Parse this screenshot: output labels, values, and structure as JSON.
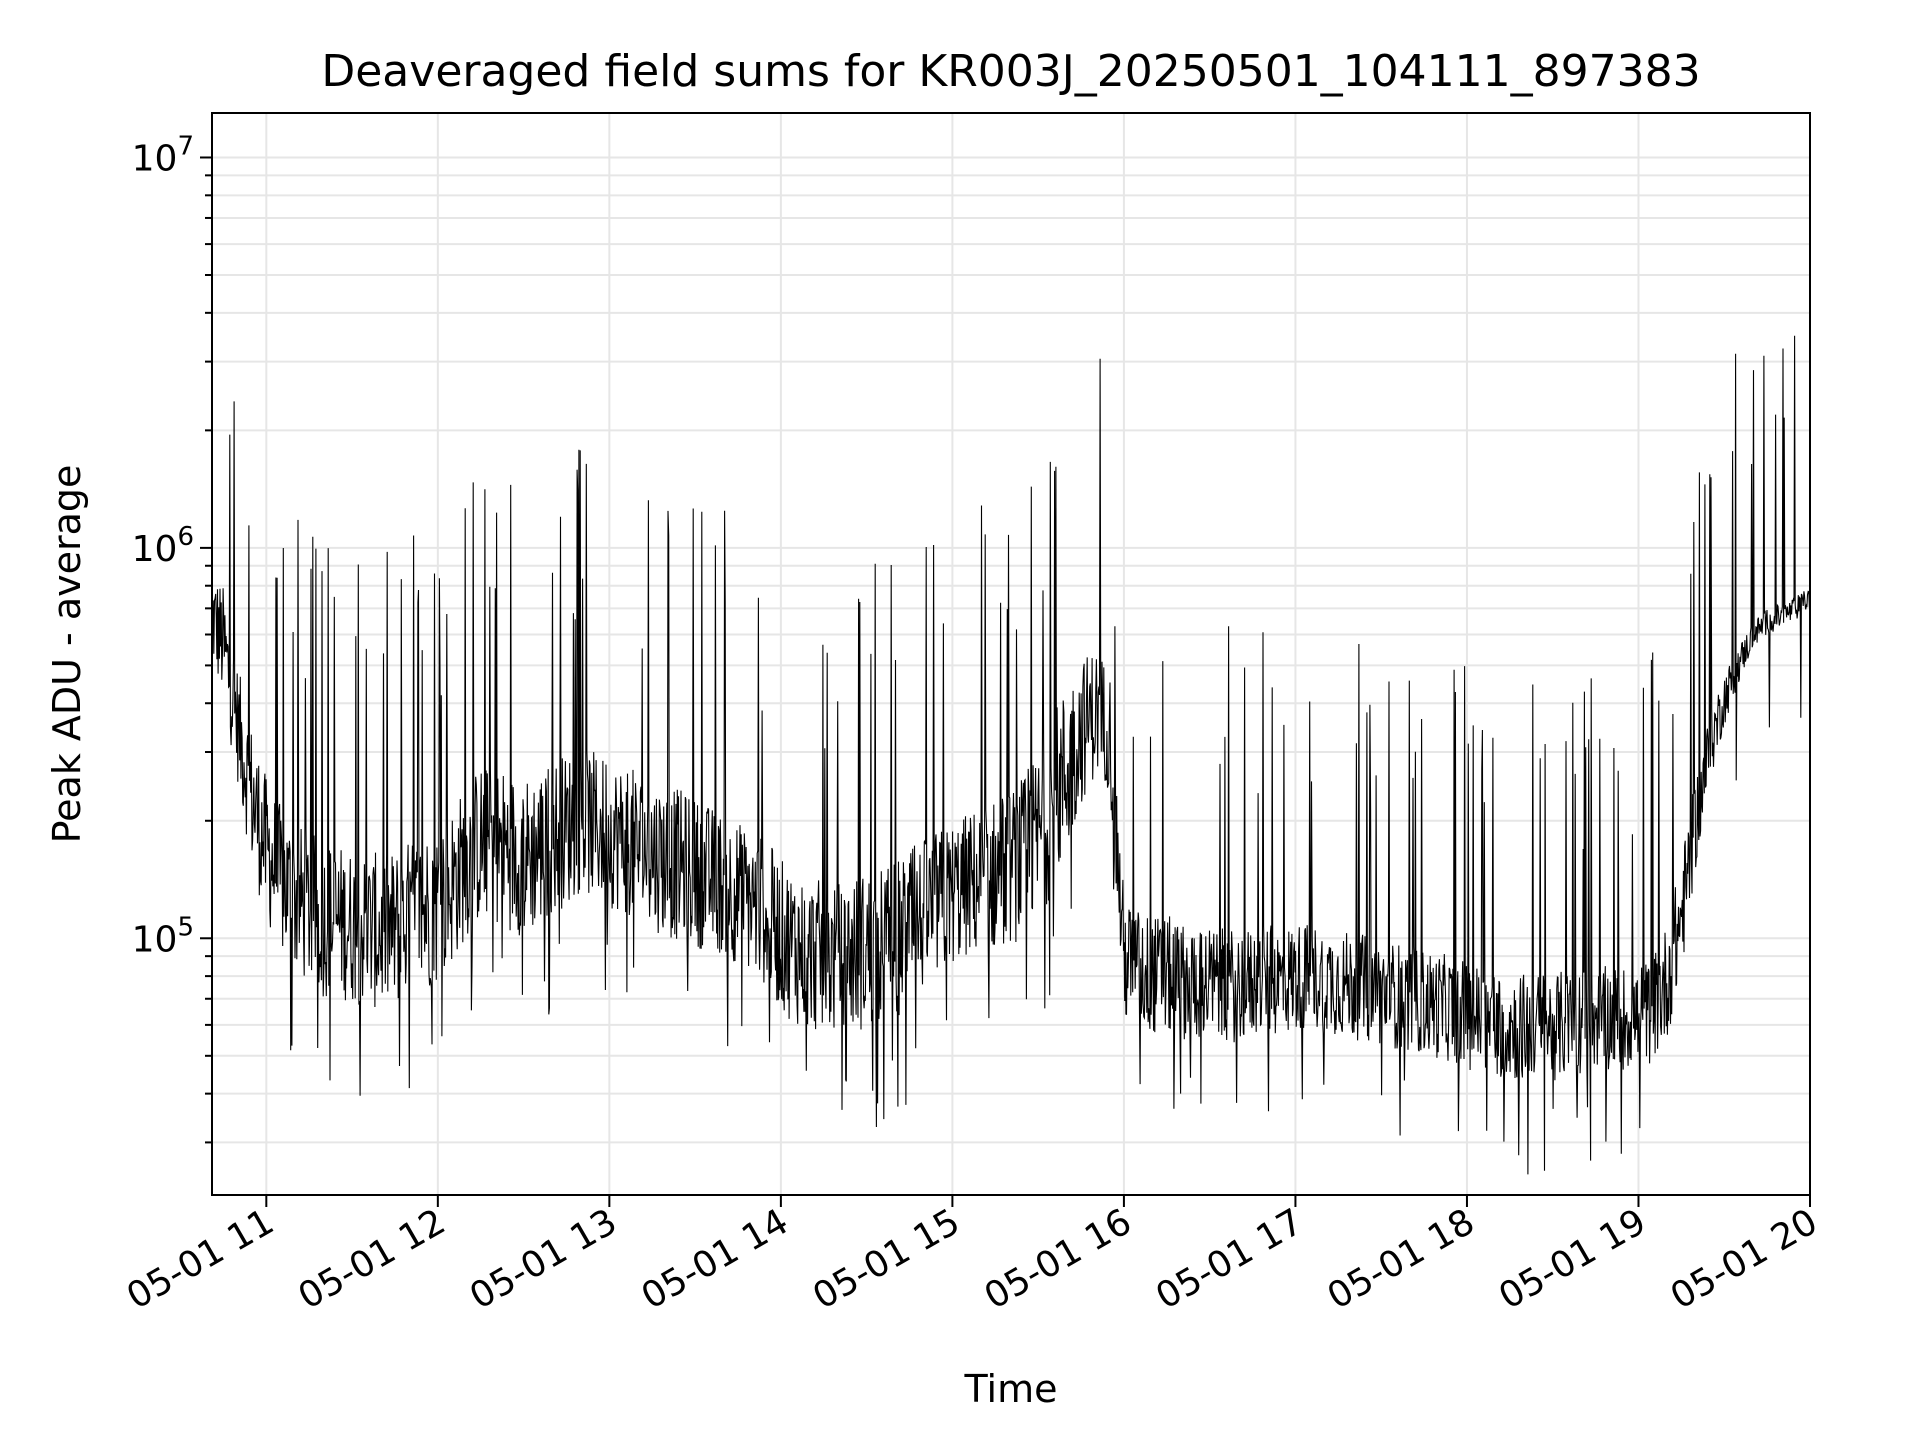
{
  "chart_data": {
    "type": "line",
    "title": "Deaveraged field sums for KR003J_20250501_104111_897383",
    "xlabel": "Time",
    "ylabel": "Peak ADU - average",
    "y_scale": "log",
    "ylim": [
      22000,
      13000000
    ],
    "xlim": [
      "2025-05-01 10:41",
      "2025-05-01 20:00"
    ],
    "grid": true,
    "line_color": "#000000",
    "x_tick_labels": [
      "05-01 11",
      "05-01 12",
      "05-01 13",
      "05-01 14",
      "05-01 15",
      "05-01 16",
      "05-01 17",
      "05-01 18",
      "05-01 19",
      "05-01 20"
    ],
    "y_tick_labels": [
      {
        "value": 100000,
        "mantissa": "10",
        "exponent": "5"
      },
      {
        "value": 1000000,
        "mantissa": "10",
        "exponent": "6"
      },
      {
        "value": 10000000,
        "mantissa": "10",
        "exponent": "7"
      }
    ],
    "series": [
      {
        "x": [
          "10:41",
          "10:45",
          "10:50",
          "10:55",
          "11:00",
          "11:05",
          "11:10",
          "11:15",
          "11:20",
          "11:25",
          "11:30",
          "11:35",
          "11:40",
          "11:45",
          "11:50",
          "11:55",
          "12:00",
          "12:05",
          "12:10",
          "12:15",
          "12:20",
          "12:25",
          "12:30",
          "12:35",
          "12:40",
          "12:45",
          "12:50",
          "12:55",
          "13:00",
          "13:05",
          "13:10",
          "13:15",
          "13:20",
          "13:25",
          "13:30",
          "13:35",
          "13:40",
          "13:45",
          "13:50",
          "13:55",
          "14:00",
          "14:05",
          "14:10",
          "14:15",
          "14:20",
          "14:25",
          "14:30",
          "14:35",
          "14:40",
          "14:45",
          "14:50",
          "14:55",
          "15:00",
          "15:05",
          "15:10",
          "15:15",
          "15:20",
          "15:25",
          "15:30",
          "15:35",
          "15:40",
          "15:45",
          "15:50",
          "15:55",
          "16:00",
          "16:05",
          "16:10",
          "16:15",
          "16:20",
          "16:25",
          "16:30",
          "16:35",
          "16:40",
          "16:45",
          "16:50",
          "16:55",
          "17:00",
          "17:05",
          "17:10",
          "17:15",
          "17:20",
          "17:25",
          "17:30",
          "17:35",
          "17:40",
          "17:45",
          "17:50",
          "17:55",
          "18:00",
          "18:05",
          "18:10",
          "18:15",
          "18:20",
          "18:25",
          "18:30",
          "18:35",
          "18:40",
          "18:45",
          "18:50",
          "18:55",
          "19:00",
          "19:05",
          "19:10",
          "19:15",
          "19:20",
          "19:25",
          "19:30",
          "19:35",
          "19:40",
          "19:45",
          "19:50",
          "19:55",
          "20:00"
        ],
        "low": [
          500000,
          400000,
          250000,
          150000,
          110000,
          90000,
          80000,
          75000,
          70000,
          70000,
          68000,
          66000,
          65000,
          65000,
          70000,
          72000,
          75000,
          85000,
          100000,
          110000,
          110000,
          105000,
          100000,
          105000,
          115000,
          120000,
          130000,
          125000,
          120000,
          115000,
          110000,
          105000,
          100000,
          98000,
          95000,
          92000,
          90000,
          85000,
          80000,
          75000,
          65000,
          60000,
          58000,
          56000,
          56000,
          57000,
          58000,
          60000,
          62000,
          66000,
          72000,
          78000,
          85000,
          88000,
          90000,
          92000,
          95000,
          100000,
          110000,
          130000,
          160000,
          220000,
          260000,
          240000,
          60000,
          58000,
          56000,
          56000,
          55000,
          55000,
          54000,
          54000,
          54000,
          55000,
          56000,
          56000,
          57000,
          58000,
          57000,
          56000,
          55000,
          54000,
          53000,
          52000,
          51000,
          50000,
          49000,
          48000,
          46000,
          45000,
          44000,
          43000,
          43000,
          43000,
          43000,
          44000,
          45000,
          46000,
          46000,
          46000,
          46000,
          48000,
          55000,
          80000,
          150000,
          250000,
          350000,
          450000,
          550000,
          600000,
          620000,
          650000,
          700000
        ],
        "high": [
          900000,
          800000,
          500000,
          350000,
          260000,
          220000,
          200000,
          190000,
          180000,
          175000,
          170000,
          168000,
          165000,
          170000,
          180000,
          190000,
          200000,
          220000,
          250000,
          280000,
          280000,
          270000,
          260000,
          270000,
          290000,
          300000,
          310000,
          300000,
          290000,
          280000,
          270000,
          260000,
          250000,
          240000,
          230000,
          220000,
          210000,
          200000,
          190000,
          180000,
          160000,
          150000,
          145000,
          140000,
          140000,
          145000,
          150000,
          155000,
          160000,
          170000,
          180000,
          190000,
          200000,
          210000,
          220000,
          230000,
          240000,
          260000,
          300000,
          380000,
          450000,
          520000,
          560000,
          500000,
          130000,
          120000,
          115000,
          115000,
          110000,
          110000,
          108000,
          106000,
          106000,
          107000,
          108000,
          108000,
          110000,
          110000,
          108000,
          106000,
          104000,
          102000,
          100000,
          98000,
          96000,
          94000,
          92000,
          90000,
          88000,
          86000,
          84000,
          82000,
          82000,
          82000,
          82000,
          83000,
          84000,
          85000,
          85000,
          85000,
          85000,
          90000,
          110000,
          160000,
          260000,
          380000,
          480000,
          560000,
          650000,
          700000,
          720000,
          750000,
          800000
        ]
      }
    ]
  }
}
